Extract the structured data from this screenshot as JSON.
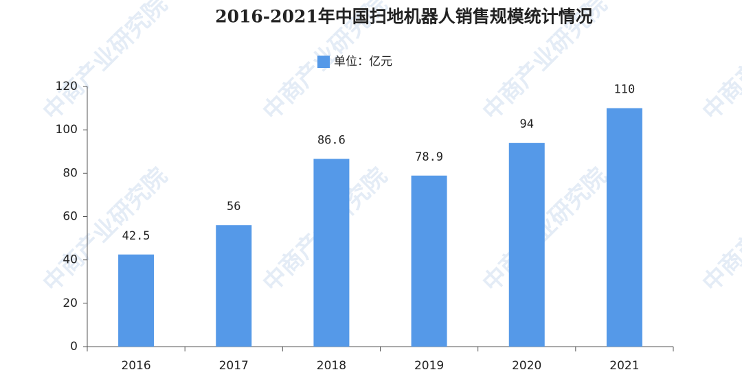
{
  "chart_data": {
    "type": "bar",
    "title": "2016-2021年中国扫地机器人销售规模统计情况",
    "legend": "单位：亿元",
    "watermark": "中商产业研究院",
    "categories": [
      "2016",
      "2017",
      "2018",
      "2019",
      "2020",
      "2021"
    ],
    "values": [
      42.5,
      56,
      86.6,
      78.9,
      94,
      110
    ],
    "color": "#5599e8",
    "ylim": [
      0,
      120
    ],
    "yticks": [
      0,
      20,
      40,
      60,
      80,
      100,
      120
    ],
    "grid": false
  }
}
